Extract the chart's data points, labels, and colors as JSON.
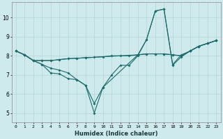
{
  "xlabel": "Humidex (Indice chaleur)",
  "background_color": "#ceeaec",
  "grid_color": "#b8d8da",
  "line_color": "#1a6b6b",
  "xlim": [
    -0.5,
    23.5
  ],
  "ylim": [
    4.5,
    10.8
  ],
  "xticks": [
    0,
    1,
    2,
    3,
    4,
    5,
    6,
    7,
    8,
    9,
    10,
    11,
    12,
    13,
    14,
    15,
    16,
    17,
    18,
    19,
    20,
    21,
    22,
    23
  ],
  "yticks": [
    5,
    6,
    7,
    8,
    9,
    10
  ],
  "line1_x": [
    0,
    1,
    2,
    3,
    4,
    5,
    6,
    7,
    8,
    9,
    10,
    11,
    12,
    13,
    14,
    15,
    16,
    17,
    18,
    19,
    20,
    21,
    22,
    23
  ],
  "line1_y": [
    8.25,
    8.05,
    7.75,
    7.55,
    7.1,
    7.05,
    6.8,
    6.75,
    6.45,
    5.0,
    6.35,
    7.0,
    7.5,
    7.5,
    8.0,
    8.85,
    10.35,
    10.45,
    7.5,
    7.95,
    8.25,
    8.5,
    8.65,
    8.8
  ],
  "line2_x": [
    0,
    1,
    2,
    3,
    4,
    5,
    6,
    7,
    8,
    9,
    10,
    11,
    12,
    13,
    14,
    15,
    16,
    17,
    18,
    19,
    20,
    21,
    22,
    23
  ],
  "line2_y": [
    8.25,
    8.05,
    7.75,
    7.75,
    7.75,
    7.8,
    7.85,
    7.87,
    7.9,
    7.92,
    7.95,
    8.0,
    8.0,
    8.0,
    8.05,
    8.1,
    8.1,
    8.1,
    8.05,
    8.0,
    8.25,
    8.5,
    8.65,
    8.8
  ],
  "line3_x": [
    0,
    1,
    2,
    3,
    4,
    5,
    6,
    7,
    8,
    9,
    10,
    14,
    15,
    16,
    17,
    18,
    19,
    20,
    21,
    22,
    23
  ],
  "line3_y": [
    8.25,
    8.05,
    7.75,
    7.55,
    7.35,
    7.25,
    7.1,
    6.75,
    6.45,
    5.5,
    6.35,
    8.05,
    8.85,
    10.35,
    10.45,
    7.55,
    8.05,
    8.25,
    8.5,
    8.65,
    8.8
  ],
  "line4_x": [
    0,
    1,
    2,
    3,
    4,
    5,
    6,
    7,
    8,
    14,
    15,
    16,
    17,
    18,
    19,
    20,
    21,
    22,
    23
  ],
  "line4_y": [
    8.25,
    8.05,
    7.75,
    7.75,
    7.75,
    7.8,
    7.85,
    7.87,
    7.9,
    8.05,
    8.1,
    8.1,
    8.1,
    8.05,
    8.0,
    8.25,
    8.5,
    8.65,
    8.8
  ]
}
